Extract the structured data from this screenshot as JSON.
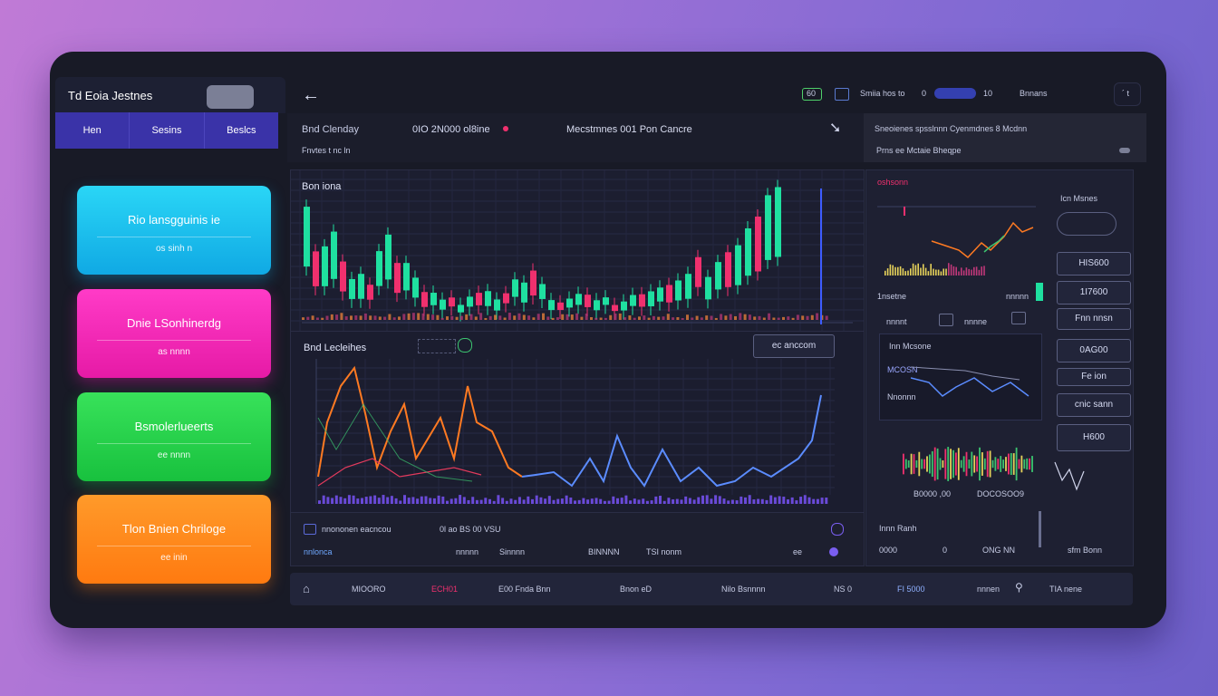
{
  "sidebar": {
    "brand": "Td Eoia Jestnes",
    "tabs": [
      "Hen",
      "Sesins",
      "Beslcs"
    ],
    "cards": [
      {
        "title": "Rio lansgguinis ie",
        "sub": "os sinh n"
      },
      {
        "title": "Dnie LSonhinerdg",
        "sub": "as nnnn"
      },
      {
        "title": "Bsmolerlueerts",
        "sub": "ee nnnn"
      },
      {
        "title": "Tlon Bnien Chriloge",
        "sub": "ee inin"
      }
    ]
  },
  "topbar": {
    "back_icon": "arrow-left-icon",
    "items": [
      "60",
      "Smiia hos to",
      "0",
      "10",
      "Bnnans"
    ],
    "right": "´ t"
  },
  "subbar": {
    "label1": "Bnd Clenday",
    "label1_sub": "Fnvtes t nc ln",
    "price": "0IO 2N000 ol8ine",
    "market": "Mecstmnes 001 Pon Cancre",
    "right_title": "Sneoienes spsslnnn Cyenmdnes 8 Mcdnn",
    "right_sub": "Prns ee Mctaie Bheqpe"
  },
  "candle_panel": {
    "title": "Bon iona"
  },
  "line_panel": {
    "title": "Bnd Lecleihes",
    "button": "ec anccom"
  },
  "stat_row": {
    "left": "nnononen eacncou",
    "mid": "0l ao BS 00 VSU",
    "r1": [
      "nnlonca",
      "nnnnn",
      "Sinnnn"
    ],
    "r2": [
      "BINNNN",
      "TSI nonm"
    ],
    "r3": "ee"
  },
  "right_panel": {
    "top_label": "oshsonn",
    "top_tag": "Icn Msnes",
    "btn1": "HIS600",
    "label2": "1nsetne",
    "label2b": "nnnnn",
    "btn2": "1I7600",
    "label3a": "nnnnt",
    "label3b": "nnnne",
    "btn3": "Fnn nnsn",
    "sub_title": "Inn Mcsone",
    "sub_a": "MCOSN",
    "sub_b": "Nnonnn",
    "btn4": "0AG00",
    "btn5": "Fe ion",
    "btn6": "cnic sann",
    "btn7": "H600",
    "vol_a": "B0000 ,00",
    "vol_b": "DOCOSOO9",
    "foot_label": "Innn Ranh",
    "foot": [
      "0000",
      "0",
      "ONG NN",
      "sfm Bonn"
    ]
  },
  "bottom_bar": {
    "items": [
      "MIOORO",
      "ECH01",
      "E00 Fnda Bnn",
      "Bnon eD",
      "Nilo Bsnnnn",
      "NS 0",
      "FI 5000",
      "nnnen",
      "TIA nene"
    ]
  },
  "colors": {
    "up": "#1fe0a0",
    "down": "#f0306e",
    "line_orange": "#ff7a22",
    "line_blue": "#5b8cff",
    "accent": "#3a33a8"
  }
}
